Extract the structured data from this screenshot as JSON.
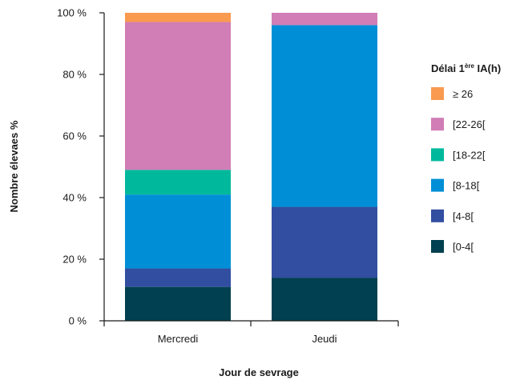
{
  "chart_data": {
    "type": "bar",
    "stacked": true,
    "categories": [
      "Mercredi",
      "Jeudi"
    ],
    "series": [
      {
        "name": "[0-4[",
        "color": "#004050",
        "values": [
          11,
          14
        ]
      },
      {
        "name": "[4-8[",
        "color": "#314ea0",
        "values": [
          6,
          23
        ]
      },
      {
        "name": "[8-18[",
        "color": "#008fd6",
        "values": [
          24,
          59
        ]
      },
      {
        "name": "[18-22[",
        "color": "#00b99d",
        "values": [
          8,
          0
        ]
      },
      {
        "name": "[22-26[",
        "color": "#d17db6",
        "values": [
          48,
          4
        ]
      },
      {
        "name": "≥ 26",
        "color": "#f99a50",
        "values": [
          3,
          0
        ]
      }
    ],
    "ylim": [
      0,
      100
    ],
    "yticks": [
      0,
      20,
      40,
      60,
      80,
      100
    ],
    "ytick_suffix": " %",
    "xlabel": "Jour de sevrage",
    "ylabel": "Nombre élevaes %",
    "legend": {
      "title_main": "Délai 1",
      "title_sup": "ère",
      "title_tail": " IA(h)",
      "placement": "right",
      "order": [
        "≥ 26",
        "[22-26[",
        "[18-22[",
        "[8-18[",
        "[4-8[",
        "[0-4["
      ]
    },
    "grid": false
  }
}
